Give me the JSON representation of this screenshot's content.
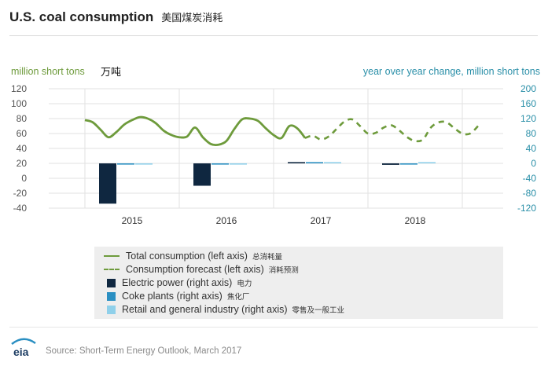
{
  "title": "U.S. coal consumption",
  "title_zh": "美国煤炭消耗",
  "left_axis_unit": "million short tons",
  "left_axis_unit_zh": "万吨",
  "right_axis_unit": "year over year change, million short tons",
  "legend": {
    "total": "Total consumption (left axis)",
    "total_zh": "总消耗量",
    "forecast": "Consumption forecast (left axis)",
    "forecast_zh": "消耗预测",
    "electric": "Electric power (right axis)",
    "electric_zh": "电力",
    "coke": "Coke plants (right axis)",
    "coke_zh": "焦化厂",
    "retail": "Retail and general industry (right axis)",
    "retail_zh": "零售及一般工业"
  },
  "logo_text": "eia",
  "source": "Source: Short-Term Energy Outlook, March 2017",
  "colors": {
    "consumption": "#6e9b3c",
    "electric": "#0f2740",
    "coke": "#2a8fc2",
    "retail": "#8fd0ea",
    "right_axis": "#2a8fa8"
  },
  "chart_data": {
    "type": "line+bar",
    "x_labels": [
      "2015",
      "2016",
      "2017",
      "2018"
    ],
    "left_axis": {
      "label": "million short tons",
      "range": [
        -40,
        120
      ],
      "ticks": [
        -40,
        -20,
        0,
        20,
        40,
        60,
        80,
        100,
        120
      ]
    },
    "right_axis": {
      "label": "year over year change, million short tons",
      "range": [
        -120,
        200
      ],
      "ticks": [
        -120,
        -80,
        -40,
        0,
        40,
        80,
        120,
        160,
        200
      ]
    },
    "grid": true,
    "series": [
      {
        "name": "Total consumption (left axis)",
        "axis": "left",
        "kind": "line",
        "values": [
          78,
          75,
          65,
          55,
          62,
          72,
          78,
          82,
          80,
          74,
          64,
          58,
          55,
          56,
          68,
          55,
          46,
          45,
          50,
          66,
          79,
          80,
          77,
          67,
          58,
          54,
          70,
          67,
          54
        ]
      },
      {
        "name": "Consumption forecast (left axis)",
        "axis": "left",
        "kind": "dashed-line",
        "values": [
          54,
          57,
          52,
          56,
          66,
          76,
          79,
          70,
          60,
          61,
          68,
          71,
          64,
          55,
          50,
          52,
          68,
          75,
          75,
          67,
          60,
          60,
          70
        ]
      },
      {
        "name": "Electric power (right axis)",
        "axis": "right",
        "kind": "bar",
        "values": [
          -108,
          -60,
          3,
          -4
        ]
      },
      {
        "name": "Coke plants (right axis)",
        "axis": "right",
        "kind": "bar",
        "values": [
          -1,
          -1,
          1,
          -1
        ]
      },
      {
        "name": "Retail and general industry (right axis)",
        "axis": "right",
        "kind": "bar",
        "values": [
          -2,
          -2,
          0,
          0
        ]
      }
    ]
  }
}
